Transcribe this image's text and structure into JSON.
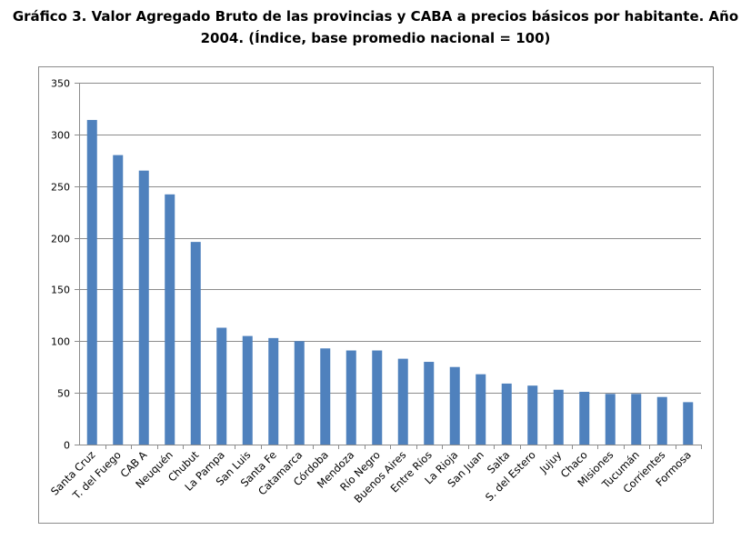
{
  "title_line1": "Gráfico 3. Valor Agregado  Bruto de las provincias  y CABA a precios básicos por habitante. Año",
  "title_line2": "2004. (Índice, base promedio nacional = 100)",
  "chart_data": {
    "type": "bar",
    "categories": [
      "Santa Cruz",
      "T. del Fuego",
      "CAB A",
      "Neuquén",
      "Chubut",
      "La Pampa",
      "San Luis",
      "Santa Fe",
      "Catamarca",
      "Córdoba",
      "Mendoza",
      "Río Negro",
      "Buenos Aires",
      "Entre Ríos",
      "La Rioja",
      "San Juan",
      "Salta",
      "S. del Estero",
      "Jujuy",
      "Chaco",
      "Misiones",
      "Tucumán",
      "Corrientes",
      "Formosa"
    ],
    "values": [
      314,
      280,
      265,
      242,
      196,
      113,
      105,
      103,
      100,
      93,
      91,
      91,
      83,
      80,
      75,
      68,
      59,
      57,
      53,
      51,
      49,
      49,
      46,
      41
    ],
    "ylim": [
      0,
      350
    ],
    "yticks": [
      0,
      50,
      100,
      150,
      200,
      250,
      300,
      350
    ],
    "grid": true,
    "legend": "none",
    "bar_color": "#4f81bd",
    "grid_color": "#8c8c8c"
  }
}
